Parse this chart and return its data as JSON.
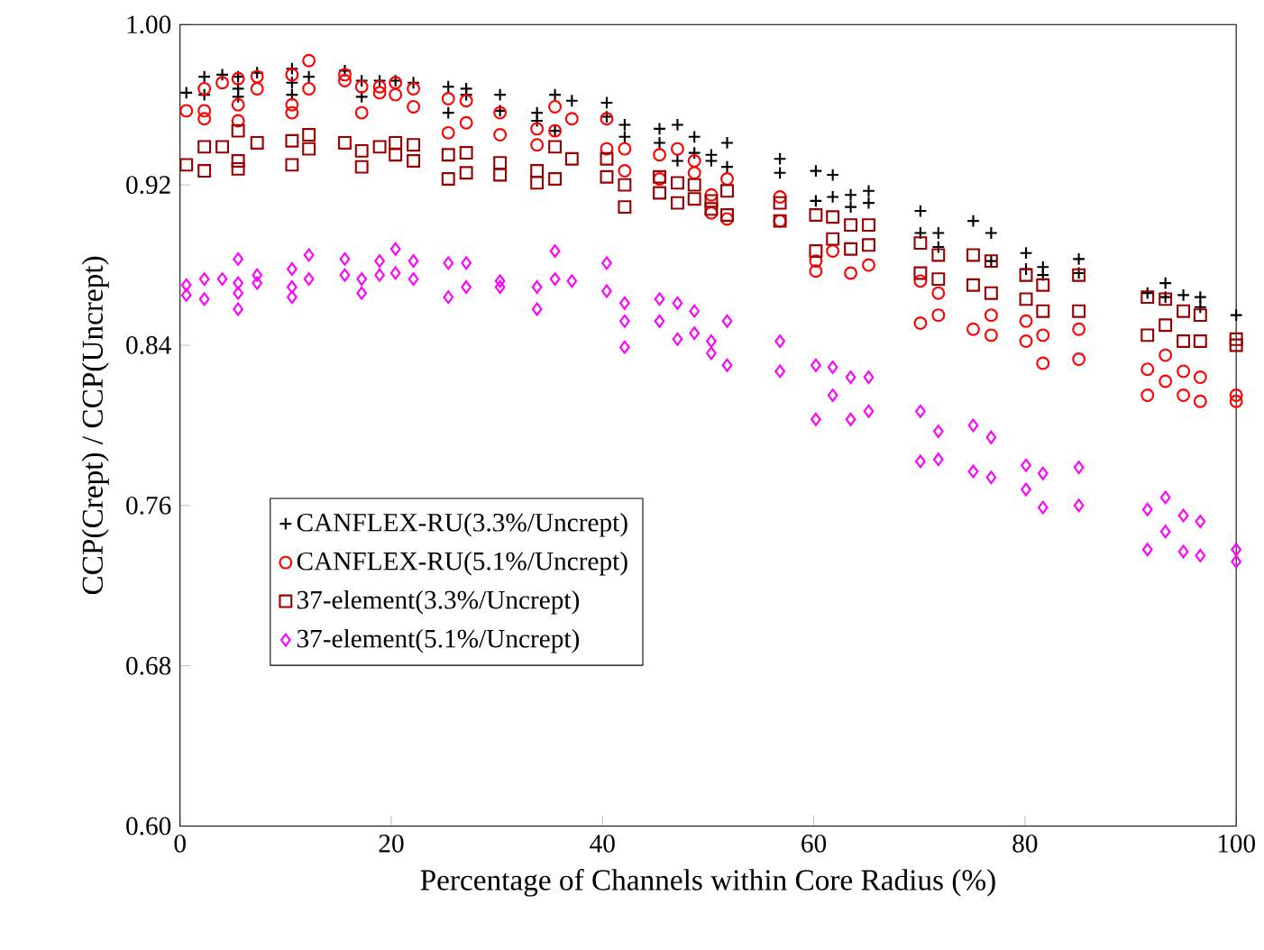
{
  "chart_data": {
    "type": "scatter",
    "xlabel": "Percentage of Channels within Core Radius (%)",
    "ylabel": "CCP(Crept) / CCP(Uncrept)",
    "xlim": [
      0,
      100
    ],
    "xticks": [
      0,
      20,
      40,
      60,
      80,
      100
    ],
    "ylim": [
      0.6,
      1.0
    ],
    "yticks": [
      {
        "value": 0.6,
        "label": "0.60"
      },
      {
        "value": 0.68,
        "label": "0.68"
      },
      {
        "value": 0.76,
        "label": "0.76"
      },
      {
        "value": 0.84,
        "label": "0.84"
      },
      {
        "value": 0.92,
        "label": "0.92"
      },
      {
        "value": 1.0,
        "label": "1.00"
      }
    ],
    "legend": "bottom left",
    "series": [
      {
        "name": "CANFLEX-RU(3.3%/Uncrept)",
        "color": "#000000",
        "marker": "cross",
        "x": [
          0.6,
          2.3,
          2.3,
          4,
          5.5,
          5.5,
          5.5,
          7.3,
          10.6,
          10.6,
          10.6,
          12.2,
          15.6,
          17.2,
          17.2,
          18.9,
          20.4,
          22.1,
          25.4,
          25.4,
          27.1,
          27.1,
          30.3,
          30.3,
          33.8,
          33.8,
          35.5,
          35.5,
          37.1,
          40.4,
          40.4,
          42.1,
          42.1,
          45.4,
          45.4,
          47.1,
          47.1,
          48.7,
          48.7,
          50.3,
          50.3,
          51.8,
          51.8,
          56.8,
          56.8,
          60.2,
          60.2,
          61.8,
          61.8,
          63.5,
          63.5,
          65.2,
          65.2,
          70.1,
          70.1,
          71.8,
          71.8,
          75.1,
          76.8,
          76.8,
          80.1,
          80.1,
          81.7,
          81.7,
          85.1,
          85.1,
          91.6,
          93.3,
          93.3,
          95,
          96.6,
          96.6,
          100
        ],
        "values": [
          0.966,
          0.974,
          0.965,
          0.975,
          0.974,
          0.968,
          0.964,
          0.976,
          0.978,
          0.971,
          0.965,
          0.974,
          0.977,
          0.972,
          0.964,
          0.972,
          0.972,
          0.971,
          0.969,
          0.956,
          0.968,
          0.965,
          0.965,
          0.957,
          0.956,
          0.952,
          0.965,
          0.947,
          0.962,
          0.961,
          0.954,
          0.95,
          0.944,
          0.948,
          0.941,
          0.95,
          0.932,
          0.944,
          0.936,
          0.935,
          0.932,
          0.941,
          0.929,
          0.933,
          0.926,
          0.927,
          0.912,
          0.925,
          0.914,
          0.915,
          0.909,
          0.917,
          0.911,
          0.907,
          0.896,
          0.896,
          0.889,
          0.902,
          0.896,
          0.882,
          0.886,
          0.878,
          0.879,
          0.875,
          0.883,
          0.876,
          0.866,
          0.871,
          0.864,
          0.865,
          0.864,
          0.859,
          0.855
        ]
      },
      {
        "name": "CANFLEX-RU(5.1%/Uncrept)",
        "color": "#ff0000",
        "marker": "circle",
        "x": [
          0.6,
          2.3,
          2.3,
          2.3,
          4,
          5.5,
          5.5,
          5.5,
          7.3,
          7.3,
          10.6,
          10.6,
          10.6,
          12.2,
          12.2,
          15.6,
          15.6,
          17.2,
          17.2,
          18.9,
          18.9,
          20.4,
          20.4,
          22.1,
          22.1,
          25.4,
          25.4,
          27.1,
          27.1,
          30.3,
          30.3,
          33.8,
          33.8,
          35.5,
          35.5,
          37.1,
          40.4,
          40.4,
          42.1,
          42.1,
          45.4,
          45.4,
          47.1,
          48.7,
          48.7,
          50.3,
          50.3,
          51.8,
          51.8,
          56.8,
          56.8,
          60.2,
          60.2,
          61.8,
          63.5,
          65.2,
          70.1,
          70.1,
          71.8,
          71.8,
          75.1,
          76.8,
          76.8,
          80.1,
          80.1,
          81.7,
          81.7,
          85.1,
          85.1,
          91.6,
          91.6,
          93.3,
          93.3,
          95,
          95,
          96.6,
          96.6,
          100,
          100
        ],
        "values": [
          0.957,
          0.968,
          0.957,
          0.953,
          0.971,
          0.973,
          0.96,
          0.952,
          0.974,
          0.968,
          0.975,
          0.96,
          0.956,
          0.982,
          0.968,
          0.975,
          0.972,
          0.969,
          0.956,
          0.969,
          0.966,
          0.971,
          0.965,
          0.968,
          0.959,
          0.963,
          0.946,
          0.962,
          0.951,
          0.956,
          0.945,
          0.948,
          0.94,
          0.959,
          0.947,
          0.953,
          0.953,
          0.938,
          0.938,
          0.927,
          0.935,
          0.923,
          0.938,
          0.932,
          0.926,
          0.915,
          0.906,
          0.923,
          0.903,
          0.914,
          0.902,
          0.882,
          0.877,
          0.887,
          0.876,
          0.88,
          0.872,
          0.851,
          0.866,
          0.855,
          0.848,
          0.855,
          0.845,
          0.852,
          0.842,
          0.845,
          0.831,
          0.848,
          0.833,
          0.828,
          0.815,
          0.835,
          0.822,
          0.827,
          0.815,
          0.824,
          0.812,
          0.815,
          0.812
        ]
      },
      {
        "name": "37-element(3.3%/Uncrept)",
        "color": "#990000",
        "marker": "square",
        "x": [
          0.6,
          2.3,
          2.3,
          4,
          5.5,
          5.5,
          5.5,
          7.3,
          10.6,
          10.6,
          12.2,
          12.2,
          15.6,
          17.2,
          17.2,
          18.9,
          20.4,
          20.4,
          22.1,
          22.1,
          25.4,
          25.4,
          27.1,
          27.1,
          30.3,
          30.3,
          33.8,
          33.8,
          35.5,
          35.5,
          37.1,
          40.4,
          40.4,
          42.1,
          42.1,
          45.4,
          45.4,
          47.1,
          47.1,
          48.7,
          48.7,
          50.3,
          50.3,
          51.8,
          51.8,
          56.8,
          56.8,
          60.2,
          60.2,
          61.8,
          61.8,
          63.5,
          63.5,
          65.2,
          65.2,
          70.1,
          70.1,
          71.8,
          71.8,
          75.1,
          75.1,
          76.8,
          76.8,
          80.1,
          80.1,
          81.7,
          81.7,
          85.1,
          85.1,
          91.6,
          91.6,
          93.3,
          93.3,
          95,
          95,
          96.6,
          96.6,
          100,
          100
        ],
        "values": [
          0.93,
          0.939,
          0.927,
          0.939,
          0.947,
          0.932,
          0.928,
          0.941,
          0.942,
          0.93,
          0.945,
          0.938,
          0.941,
          0.937,
          0.929,
          0.939,
          0.941,
          0.935,
          0.94,
          0.932,
          0.935,
          0.923,
          0.936,
          0.926,
          0.931,
          0.925,
          0.927,
          0.921,
          0.939,
          0.923,
          0.933,
          0.933,
          0.924,
          0.92,
          0.909,
          0.924,
          0.916,
          0.921,
          0.911,
          0.92,
          0.913,
          0.912,
          0.908,
          0.917,
          0.905,
          0.911,
          0.902,
          0.905,
          0.887,
          0.904,
          0.893,
          0.9,
          0.888,
          0.9,
          0.89,
          0.891,
          0.876,
          0.885,
          0.873,
          0.885,
          0.87,
          0.882,
          0.866,
          0.875,
          0.863,
          0.87,
          0.857,
          0.875,
          0.857,
          0.864,
          0.845,
          0.863,
          0.85,
          0.857,
          0.842,
          0.855,
          0.842,
          0.843,
          0.84
        ]
      },
      {
        "name": "37-element(5.1%/Uncrept)",
        "color": "#ff00ff",
        "marker": "diamond",
        "x": [
          0.6,
          0.6,
          2.3,
          2.3,
          4,
          5.5,
          5.5,
          5.5,
          5.5,
          7.3,
          7.3,
          10.6,
          10.6,
          10.6,
          12.2,
          12.2,
          15.6,
          15.6,
          17.2,
          17.2,
          18.9,
          18.9,
          20.4,
          20.4,
          22.1,
          22.1,
          25.4,
          25.4,
          27.1,
          27.1,
          30.3,
          30.3,
          33.8,
          33.8,
          35.5,
          35.5,
          37.1,
          40.4,
          40.4,
          42.1,
          42.1,
          42.1,
          45.4,
          45.4,
          47.1,
          47.1,
          48.7,
          48.7,
          50.3,
          50.3,
          51.8,
          51.8,
          56.8,
          56.8,
          60.2,
          60.2,
          61.8,
          61.8,
          63.5,
          63.5,
          65.2,
          65.2,
          70.1,
          70.1,
          71.8,
          71.8,
          75.1,
          75.1,
          76.8,
          76.8,
          80.1,
          80.1,
          81.7,
          81.7,
          85.1,
          85.1,
          91.6,
          91.6,
          93.3,
          93.3,
          95,
          95,
          96.6,
          96.6,
          100,
          100
        ],
        "values": [
          0.87,
          0.865,
          0.873,
          0.863,
          0.873,
          0.883,
          0.871,
          0.866,
          0.858,
          0.875,
          0.871,
          0.878,
          0.869,
          0.864,
          0.885,
          0.873,
          0.883,
          0.875,
          0.873,
          0.866,
          0.882,
          0.875,
          0.888,
          0.876,
          0.882,
          0.873,
          0.881,
          0.864,
          0.881,
          0.869,
          0.872,
          0.869,
          0.869,
          0.858,
          0.887,
          0.873,
          0.872,
          0.881,
          0.867,
          0.861,
          0.852,
          0.839,
          0.863,
          0.852,
          0.861,
          0.843,
          0.857,
          0.846,
          0.842,
          0.836,
          0.852,
          0.83,
          0.842,
          0.827,
          0.83,
          0.803,
          0.829,
          0.815,
          0.824,
          0.803,
          0.824,
          0.807,
          0.807,
          0.782,
          0.797,
          0.783,
          0.8,
          0.777,
          0.794,
          0.774,
          0.78,
          0.768,
          0.776,
          0.759,
          0.779,
          0.76,
          0.758,
          0.738,
          0.764,
          0.747,
          0.755,
          0.737,
          0.752,
          0.735,
          0.738,
          0.732
        ]
      }
    ]
  }
}
